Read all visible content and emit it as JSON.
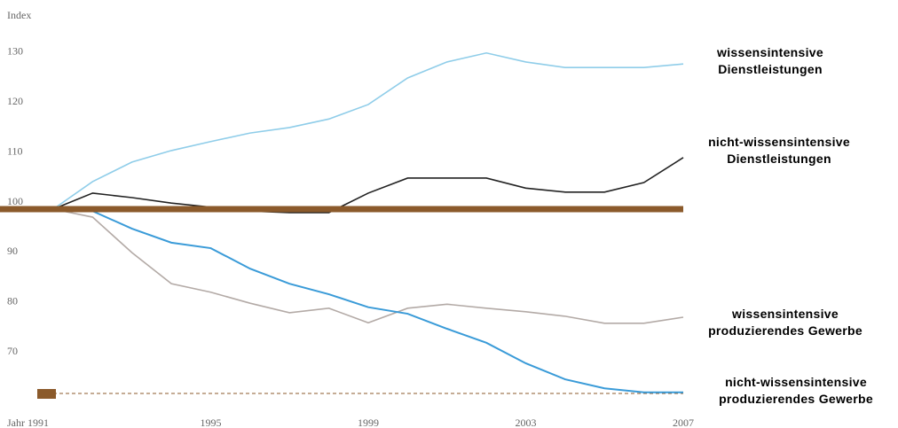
{
  "chart_data": {
    "type": "line",
    "y_label": "Index",
    "x": [
      1991,
      1992,
      1993,
      1994,
      1995,
      1996,
      1997,
      1998,
      1999,
      2000,
      2001,
      2002,
      2003,
      2004,
      2005,
      2006,
      2007
    ],
    "xlim": [
      1991,
      2007
    ],
    "xticks": [
      {
        "value": 1991,
        "label": "Jahr 1991"
      },
      1995,
      1999,
      2003,
      2007
    ],
    "ylim": [
      63,
      137
    ],
    "yticks": [
      70,
      80,
      90,
      100,
      110,
      120,
      130
    ],
    "reference_color": "#8b5a2b",
    "series": [
      {
        "name": "wissensintensive Dienstleistungen",
        "color": "#8fcde9",
        "values": [
          100,
          105.5,
          109.4,
          111.7,
          113.5,
          115.2,
          116.3,
          118,
          120.9,
          126.2,
          129.4,
          131.2,
          129.4,
          128.3,
          128.3,
          128.3,
          129
        ]
      },
      {
        "name": "nicht-wissensintensive Dienstleistungen",
        "color": "#222222",
        "values": [
          100,
          103.2,
          102.3,
          101.2,
          100.4,
          99.6,
          99.3,
          99.3,
          103.2,
          106.2,
          106.2,
          106.2,
          104.2,
          103.4,
          103.4,
          105.3,
          110.3
        ]
      },
      {
        "name": "wissensintensive produzierendes Gewerbe",
        "color": "#b3aaa6",
        "values": [
          100,
          98.4,
          91.3,
          85.1,
          83.4,
          81.2,
          79.3,
          80.2,
          77.3,
          80.2,
          81,
          80.2,
          79.5,
          78.6,
          77.2,
          77.2,
          78.4
        ]
      },
      {
        "name": "nicht-wissensintensive produzierendes Gewerbe",
        "color": "#3a9bd8",
        "values": [
          100,
          99.6,
          96.1,
          93.3,
          92.2,
          88.1,
          85.1,
          83,
          80.4,
          79.1,
          76.1,
          73.3,
          69.2,
          66,
          64.2,
          63.4,
          63.4
        ]
      }
    ]
  }
}
